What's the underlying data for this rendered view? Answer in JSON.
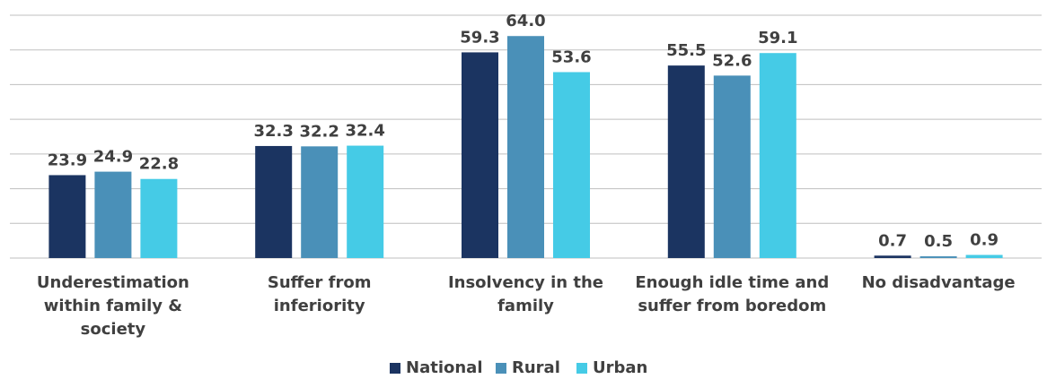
{
  "chart_data": {
    "type": "bar",
    "categories": [
      "Underestimation within family & society",
      "Suffer from inferiority",
      "Insolvency in the family",
      "Enough idle time and suffer from boredom",
      "No disadvantage"
    ],
    "series": [
      {
        "name": "National",
        "color": "#1b3461",
        "values": [
          23.9,
          32.3,
          59.3,
          55.5,
          0.7
        ],
        "value_labels": [
          "23.9",
          "32.3",
          "59.3",
          "55.5",
          "0.7"
        ]
      },
      {
        "name": "Rural",
        "color": "#4a90b8",
        "values": [
          24.9,
          32.2,
          64.0,
          52.6,
          0.5
        ],
        "value_labels": [
          "24.9",
          "32.2",
          "64.0",
          "52.6",
          "0.5"
        ]
      },
      {
        "name": "Urban",
        "color": "#45cbe6",
        "values": [
          22.8,
          32.4,
          53.6,
          59.1,
          0.9
        ],
        "value_labels": [
          "22.8",
          "32.4",
          "53.6",
          "59.1",
          "0.9"
        ]
      }
    ],
    "ylim": [
      0,
      70
    ],
    "yticks": [
      0,
      10,
      20,
      30,
      40,
      50,
      60,
      70
    ],
    "grid": true,
    "legend": "bottom"
  }
}
